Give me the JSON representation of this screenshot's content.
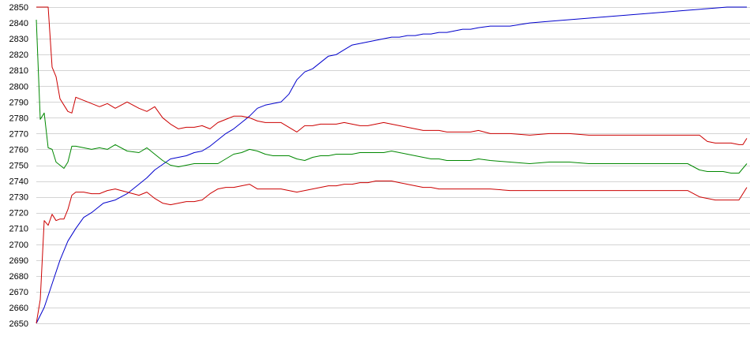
{
  "chart_data": {
    "type": "line",
    "title": "",
    "xlabel": "",
    "ylabel": "",
    "ylim": [
      2650,
      2850
    ],
    "yticks": [
      2650,
      2660,
      2670,
      2680,
      2690,
      2700,
      2710,
      2720,
      2730,
      2740,
      2750,
      2760,
      2770,
      2780,
      2790,
      2800,
      2810,
      2820,
      2830,
      2840,
      2850
    ],
    "ytick_labels": [
      "2650",
      "2660",
      "2670",
      "2680",
      "2690",
      "2700",
      "2710",
      "2720",
      "2730",
      "2740",
      "2750",
      "2760",
      "2770",
      "2780",
      "2790",
      "2800",
      "2810",
      "2820",
      "2830",
      "2840",
      "2850"
    ],
    "xlim": [
      0,
      180
    ],
    "grid": "horizontal",
    "legend": "none",
    "series": [
      {
        "color": "#0000cc",
        "x": [
          0,
          2,
          4,
          6,
          8,
          10,
          12,
          14,
          17,
          20,
          23,
          26,
          28,
          30,
          34,
          38,
          40,
          42,
          44,
          48,
          50,
          52,
          54,
          56,
          58,
          60,
          62,
          64,
          66,
          68,
          70,
          72,
          74,
          76,
          78,
          80,
          82,
          84,
          86,
          88,
          90,
          92,
          94,
          96,
          98,
          100,
          102,
          104,
          106,
          108,
          110,
          112,
          115,
          120,
          125,
          130,
          135,
          140,
          145,
          150,
          155,
          160,
          165,
          170,
          175,
          180
        ],
        "values": [
          2650,
          2660,
          2675,
          2690,
          2702,
          2710,
          2717,
          2720,
          2726,
          2728,
          2732,
          2738,
          2742,
          2747,
          2754,
          2756,
          2758,
          2759,
          2762,
          2770,
          2773,
          2777,
          2781,
          2786,
          2788,
          2789,
          2790,
          2795,
          2804,
          2809,
          2811,
          2815,
          2819,
          2820,
          2823,
          2826,
          2827,
          2828,
          2829,
          2830,
          2831,
          2831,
          2832,
          2832,
          2833,
          2833,
          2834,
          2834,
          2835,
          2836,
          2836,
          2837,
          2838,
          2838,
          2840,
          2841,
          2842,
          2843,
          2844,
          2845,
          2846,
          2847,
          2848,
          2849,
          2850,
          2850
        ]
      },
      {
        "color": "#cc0000",
        "x": [
          0,
          2,
          3,
          4,
          5,
          6,
          7,
          8,
          9,
          10,
          12,
          14,
          16,
          18,
          20,
          23,
          26,
          28,
          30,
          32,
          34,
          36,
          38,
          40,
          42,
          44,
          46,
          48,
          50,
          52,
          54,
          56,
          58,
          60,
          62,
          64,
          66,
          68,
          70,
          72,
          74,
          76,
          78,
          80,
          82,
          84,
          86,
          88,
          90,
          92,
          94,
          96,
          98,
          100,
          102,
          104,
          106,
          108,
          110,
          112,
          115,
          120,
          125,
          130,
          135,
          140,
          145,
          150,
          155,
          160,
          165,
          168,
          170,
          172,
          174,
          176,
          178,
          179,
          180
        ],
        "values": [
          2850,
          2850,
          2850,
          2812,
          2806,
          2792,
          2788,
          2784,
          2783,
          2793,
          2791,
          2789,
          2787,
          2789,
          2786,
          2790,
          2786,
          2784,
          2787,
          2780,
          2776,
          2773,
          2774,
          2774,
          2775,
          2773,
          2777,
          2779,
          2781,
          2781,
          2780,
          2778,
          2777,
          2777,
          2777,
          2774,
          2771,
          2775,
          2775,
          2776,
          2776,
          2776,
          2777,
          2776,
          2775,
          2775,
          2776,
          2777,
          2776,
          2775,
          2774,
          2773,
          2772,
          2772,
          2772,
          2771,
          2771,
          2771,
          2771,
          2772,
          2770,
          2770,
          2769,
          2770,
          2770,
          2769,
          2769,
          2769,
          2769,
          2769,
          2769,
          2769,
          2765,
          2764,
          2764,
          2764,
          2763,
          2763,
          2767
        ]
      },
      {
        "color": "#008800",
        "x": [
          0,
          1,
          2,
          3,
          4,
          5,
          6,
          7,
          8,
          9,
          10,
          12,
          14,
          16,
          18,
          20,
          23,
          26,
          28,
          30,
          32,
          34,
          36,
          38,
          40,
          42,
          44,
          46,
          48,
          50,
          52,
          54,
          56,
          58,
          60,
          62,
          64,
          66,
          68,
          70,
          72,
          74,
          76,
          78,
          80,
          82,
          84,
          86,
          88,
          90,
          92,
          94,
          96,
          98,
          100,
          102,
          104,
          106,
          108,
          110,
          112,
          115,
          120,
          125,
          130,
          135,
          140,
          145,
          150,
          155,
          160,
          165,
          168,
          170,
          172,
          174,
          176,
          178,
          180
        ],
        "values": [
          2842,
          2779,
          2783,
          2761,
          2760,
          2752,
          2750,
          2748,
          2752,
          2762,
          2762,
          2761,
          2760,
          2761,
          2760,
          2763,
          2759,
          2758,
          2761,
          2757,
          2753,
          2750,
          2749,
          2750,
          2751,
          2751,
          2751,
          2751,
          2754,
          2757,
          2758,
          2760,
          2759,
          2757,
          2756,
          2756,
          2756,
          2754,
          2753,
          2755,
          2756,
          2756,
          2757,
          2757,
          2757,
          2758,
          2758,
          2758,
          2758,
          2759,
          2758,
          2757,
          2756,
          2755,
          2754,
          2754,
          2753,
          2753,
          2753,
          2753,
          2754,
          2753,
          2752,
          2751,
          2752,
          2752,
          2751,
          2751,
          2751,
          2751,
          2751,
          2751,
          2747,
          2746,
          2746,
          2746,
          2745,
          2745,
          2751
        ]
      },
      {
        "color": "#cc0000",
        "x": [
          0,
          1,
          2,
          3,
          4,
          5,
          6,
          7,
          8,
          9,
          10,
          12,
          14,
          16,
          18,
          20,
          23,
          26,
          28,
          30,
          32,
          34,
          36,
          38,
          40,
          42,
          44,
          46,
          48,
          50,
          52,
          54,
          56,
          58,
          60,
          62,
          64,
          66,
          68,
          70,
          72,
          74,
          76,
          78,
          80,
          82,
          84,
          86,
          88,
          90,
          92,
          94,
          96,
          98,
          100,
          102,
          104,
          106,
          108,
          110,
          112,
          115,
          120,
          125,
          130,
          135,
          140,
          145,
          150,
          155,
          160,
          165,
          168,
          170,
          172,
          174,
          176,
          178,
          180
        ],
        "values": [
          2650,
          2665,
          2715,
          2712,
          2719,
          2715,
          2716,
          2716,
          2722,
          2731,
          2733,
          2733,
          2732,
          2732,
          2734,
          2735,
          2733,
          2731,
          2733,
          2729,
          2726,
          2725,
          2726,
          2727,
          2727,
          2728,
          2732,
          2735,
          2736,
          2736,
          2737,
          2738,
          2735,
          2735,
          2735,
          2735,
          2734,
          2733,
          2734,
          2735,
          2736,
          2737,
          2737,
          2738,
          2738,
          2739,
          2739,
          2740,
          2740,
          2740,
          2739,
          2738,
          2737,
          2736,
          2736,
          2735,
          2735,
          2735,
          2735,
          2735,
          2735,
          2735,
          2734,
          2734,
          2734,
          2734,
          2734,
          2734,
          2734,
          2734,
          2734,
          2734,
          2730,
          2729,
          2728,
          2728,
          2728,
          2728,
          2736
        ]
      }
    ]
  }
}
